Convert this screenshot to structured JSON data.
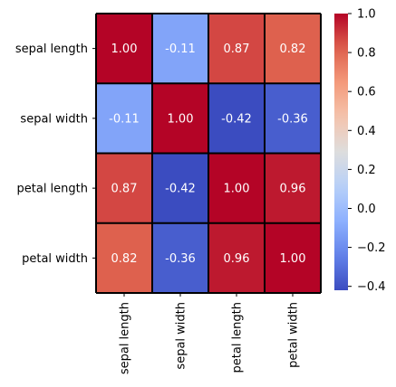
{
  "chart_data": {
    "type": "heatmap",
    "title": "",
    "xlabel": "",
    "ylabel": "",
    "rows": [
      "sepal length",
      "sepal width",
      "petal length",
      "petal width"
    ],
    "columns": [
      "sepal length",
      "sepal width",
      "petal length",
      "petal width"
    ],
    "values": [
      [
        1.0,
        -0.11,
        0.87,
        0.82
      ],
      [
        -0.11,
        1.0,
        -0.42,
        -0.36
      ],
      [
        0.87,
        -0.42,
        1.0,
        0.96
      ],
      [
        0.82,
        -0.36,
        0.96,
        1.0
      ]
    ],
    "value_labels": [
      [
        "1.00",
        "-0.11",
        "0.87",
        "0.82"
      ],
      [
        "-0.11",
        "1.00",
        "-0.42",
        "-0.36"
      ],
      [
        "0.87",
        "-0.42",
        "1.00",
        "0.96"
      ],
      [
        "0.82",
        "-0.36",
        "0.96",
        "1.00"
      ]
    ],
    "colorscale": "coolwarm",
    "color_range": [
      -0.42,
      1.0
    ],
    "colorbar_ticks": [
      {
        "value": 1.0,
        "label": "1.0"
      },
      {
        "value": 0.8,
        "label": "0.8"
      },
      {
        "value": 0.6,
        "label": "0.6"
      },
      {
        "value": 0.4,
        "label": "0.4"
      },
      {
        "value": 0.2,
        "label": "0.2"
      },
      {
        "value": 0.0,
        "label": "0.0"
      },
      {
        "value": -0.2,
        "label": "−0.2"
      },
      {
        "value": -0.4,
        "label": "−0.4"
      }
    ],
    "cell_border_color": "#000000",
    "annotation_color": "#ffffff",
    "grid": false,
    "legend": "colorbar-right"
  }
}
